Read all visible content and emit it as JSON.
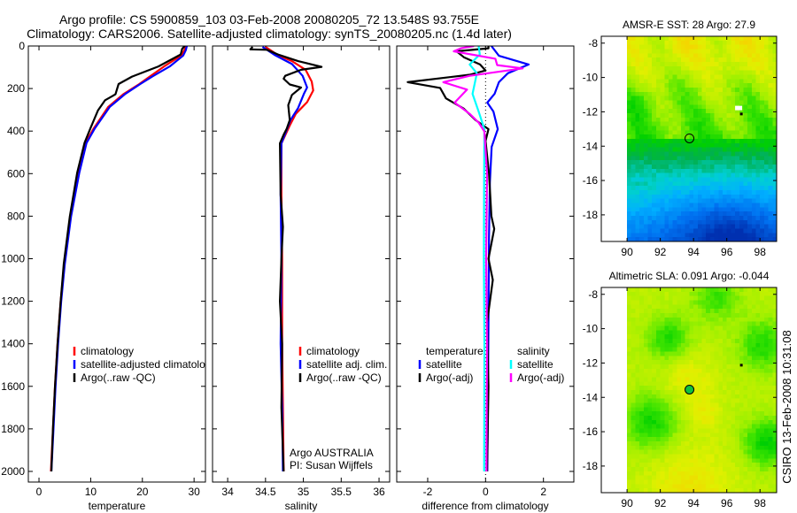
{
  "title": {
    "line1": "Argo profile: CS 5900859_103 03-Feb-2008 20080205_72 13.548S 93.755E",
    "line2": "Climatology: CARS2006. Satellite-adjusted climatology: synTS_20080205.nc (1.4d later)"
  },
  "side_label": "CSIRO 13-Feb-2008 10:31:08",
  "chart_data": [
    {
      "type": "line",
      "id": "temperature",
      "xlabel": "temperature",
      "ylabel": "",
      "xlim": [
        -2.06,
        32.2
      ],
      "ylim": [
        0,
        2050
      ],
      "y_reversed": true,
      "xticks": [
        0,
        10,
        20,
        30
      ],
      "yticks": [
        0,
        200,
        400,
        600,
        800,
        1000,
        1200,
        1400,
        1600,
        1800,
        2000
      ],
      "show_ytick_labels": true,
      "legend": [
        {
          "label": "climatology",
          "color": "#ff0000"
        },
        {
          "label": "satellite-adjusted climatology",
          "color": "#0000ff"
        },
        {
          "label": "Argo(..raw -QC)",
          "color": "#000000"
        }
      ],
      "series": [
        {
          "name": "climatology",
          "color": "#ff0000",
          "points": [
            [
              28.4,
              0
            ],
            [
              28.1,
              20
            ],
            [
              27.5,
              45
            ],
            [
              24.2,
              96
            ],
            [
              21.4,
              144
            ],
            [
              19.4,
              179
            ],
            [
              16.3,
              227
            ],
            [
              13.4,
              286
            ],
            [
              10.6,
              387
            ],
            [
              9.0,
              456
            ],
            [
              7.6,
              595
            ],
            [
              6.1,
              803
            ],
            [
              4.9,
              1024
            ],
            [
              4.2,
              1200
            ],
            [
              3.6,
              1400
            ],
            [
              3.1,
              1600
            ],
            [
              2.7,
              1800
            ],
            [
              2.3,
              2000
            ]
          ]
        },
        {
          "name": "satellite-adjusted climatology",
          "color": "#0000ff",
          "points": [
            [
              28.6,
              0
            ],
            [
              28.4,
              20
            ],
            [
              27.9,
              45
            ],
            [
              25.3,
              96
            ],
            [
              21.9,
              144
            ],
            [
              19.6,
              179
            ],
            [
              16.6,
              227
            ],
            [
              13.7,
              286
            ],
            [
              10.8,
              387
            ],
            [
              9.2,
              456
            ],
            [
              7.8,
              595
            ],
            [
              6.2,
              803
            ],
            [
              5.0,
              1024
            ],
            [
              4.3,
              1200
            ],
            [
              3.7,
              1400
            ],
            [
              3.2,
              1600
            ],
            [
              2.8,
              1800
            ],
            [
              2.4,
              2000
            ]
          ]
        },
        {
          "name": "Argo(..raw -QC)",
          "color": "#000000",
          "points": [
            [
              28.2,
              0
            ],
            [
              27.7,
              13
            ],
            [
              27.4,
              40
            ],
            [
              23.1,
              96
            ],
            [
              18.0,
              144
            ],
            [
              15.4,
              179
            ],
            [
              14.8,
              227
            ],
            [
              12.8,
              255
            ],
            [
              11.4,
              303
            ],
            [
              9.95,
              387
            ],
            [
              8.8,
              456
            ],
            [
              7.4,
              595
            ],
            [
              5.95,
              803
            ],
            [
              4.8,
              1024
            ],
            [
              4.2,
              1200
            ],
            [
              3.6,
              1400
            ],
            [
              3.1,
              1600
            ],
            [
              2.7,
              1800
            ],
            [
              2.4,
              2000
            ]
          ]
        }
      ]
    },
    {
      "type": "line",
      "id": "salinity",
      "xlabel": "salinity",
      "ylabel": "",
      "xlim": [
        33.8,
        36.14
      ],
      "ylim": [
        0,
        2050
      ],
      "y_reversed": true,
      "xticks": [
        34,
        34.5,
        35,
        35.5,
        36
      ],
      "yticks": [
        0,
        200,
        400,
        600,
        800,
        1000,
        1200,
        1400,
        1600,
        1800,
        2000
      ],
      "show_ytick_labels": false,
      "legend": [
        {
          "label": "climatology",
          "color": "#ff0000"
        },
        {
          "label": "satellite adj. clim.",
          "color": "#0000ff"
        },
        {
          "label": "Argo(..raw -QC)",
          "color": "#000000"
        }
      ],
      "annotation": [
        "Argo AUSTRALIA",
        "PI: Susan Wijffels"
      ],
      "series": [
        {
          "name": "climatology",
          "color": "#ff0000",
          "points": [
            [
              34.5,
              4
            ],
            [
              34.66,
              42
            ],
            [
              34.85,
              71
            ],
            [
              35.03,
              112
            ],
            [
              35.11,
              167
            ],
            [
              35.13,
              209
            ],
            [
              35.05,
              264
            ],
            [
              34.9,
              319
            ],
            [
              34.82,
              374
            ],
            [
              34.71,
              458
            ],
            [
              34.71,
              700
            ],
            [
              34.72,
              1000
            ],
            [
              34.72,
              1400
            ],
            [
              34.73,
              1700
            ],
            [
              34.74,
              2000
            ]
          ]
        },
        {
          "name": "satellite adj. clim.",
          "color": "#0000ff",
          "points": [
            [
              34.46,
              4
            ],
            [
              34.62,
              42
            ],
            [
              34.85,
              85
            ],
            [
              34.99,
              140
            ],
            [
              35.05,
              195
            ],
            [
              35.01,
              223
            ],
            [
              34.93,
              292
            ],
            [
              34.83,
              348
            ],
            [
              34.71,
              458
            ],
            [
              34.7,
              700
            ],
            [
              34.71,
              1000
            ],
            [
              34.7,
              1400
            ],
            [
              34.72,
              1700
            ],
            [
              34.73,
              2000
            ]
          ]
        },
        {
          "name": "Argo(..raw -QC)",
          "color": "#000000",
          "points": [
            [
              34.33,
              4
            ],
            [
              34.3,
              16
            ],
            [
              34.52,
              18
            ],
            [
              34.68,
              42
            ],
            [
              34.93,
              71
            ],
            [
              35.24,
              98
            ],
            [
              34.97,
              112
            ],
            [
              34.76,
              140
            ],
            [
              34.74,
              154
            ],
            [
              34.82,
              181
            ],
            [
              34.97,
              195
            ],
            [
              34.85,
              230
            ],
            [
              34.8,
              278
            ],
            [
              34.82,
              348
            ],
            [
              34.78,
              389
            ],
            [
              34.74,
              417
            ],
            [
              34.69,
              458
            ],
            [
              34.7,
              700
            ],
            [
              34.73,
              850
            ],
            [
              34.71,
              1000
            ],
            [
              34.69,
              1200
            ],
            [
              34.72,
              1400
            ],
            [
              34.71,
              1700
            ],
            [
              34.74,
              2000
            ]
          ]
        }
      ]
    },
    {
      "type": "line",
      "id": "difference",
      "xlabel": "difference from climatology",
      "ylabel": "",
      "xlim": [
        -3.07,
        3.05
      ],
      "ylim": [
        0,
        2050
      ],
      "y_reversed": true,
      "xticks": [
        -2,
        0,
        2
      ],
      "yticks": [
        0,
        200,
        400,
        600,
        800,
        1000,
        1200,
        1400,
        1600,
        1800,
        2000
      ],
      "show_ytick_labels": false,
      "zero_line": true,
      "legend_groups": [
        {
          "header": "temperature",
          "items": [
            {
              "label": "satellite",
              "color": "#0000ff"
            },
            {
              "label": "Argo(-adj)",
              "color": "#000000"
            }
          ]
        },
        {
          "header": "salinity",
          "items": [
            {
              "label": "satellite",
              "color": "#00ffff"
            },
            {
              "label": "Argo(-adj)",
              "color": "#ff00ff"
            }
          ]
        }
      ],
      "series": [
        {
          "name": "temperature satellite",
          "color": "#0000ff",
          "points": [
            [
              0.2,
              0
            ],
            [
              0.46,
              46
            ],
            [
              1.49,
              87
            ],
            [
              0.77,
              128
            ],
            [
              0.46,
              170
            ],
            [
              0.31,
              225
            ],
            [
              0.06,
              266
            ],
            [
              0.27,
              308
            ],
            [
              0.42,
              391
            ],
            [
              0.21,
              474
            ],
            [
              0.15,
              640
            ],
            [
              0.12,
              900
            ],
            [
              0.1,
              1300
            ],
            [
              0.08,
              1700
            ],
            [
              0.06,
              2000
            ]
          ]
        },
        {
          "name": "temperature Argo(-adj)",
          "color": "#000000",
          "points": [
            [
              0.1,
              0
            ],
            [
              0.1,
              11
            ],
            [
              -1.0,
              25
            ],
            [
              -0.75,
              53
            ],
            [
              -0.19,
              87
            ],
            [
              0.0,
              115
            ],
            [
              -0.55,
              135
            ],
            [
              -2.69,
              170
            ],
            [
              -1.57,
              197
            ],
            [
              -1.37,
              246
            ],
            [
              -0.76,
              294
            ],
            [
              -0.34,
              349
            ],
            [
              0.1,
              391
            ],
            [
              0.0,
              446
            ],
            [
              0.12,
              600
            ],
            [
              0.2,
              800
            ],
            [
              0.3,
              860
            ],
            [
              0.1,
              1000
            ],
            [
              0.25,
              1100
            ],
            [
              0.05,
              1300
            ],
            [
              0.1,
              1600
            ],
            [
              0.05,
              2000
            ]
          ]
        },
        {
          "name": "salinity satellite",
          "color": "#00ffff",
          "points": [
            [
              -0.24,
              0
            ],
            [
              -0.2,
              40
            ],
            [
              -0.55,
              87
            ],
            [
              -0.3,
              128
            ],
            [
              -0.45,
              225
            ],
            [
              -0.24,
              308
            ],
            [
              -0.04,
              391
            ],
            [
              -0.05,
              600
            ],
            [
              -0.06,
              1000
            ],
            [
              -0.04,
              1400
            ],
            [
              -0.05,
              2000
            ]
          ]
        },
        {
          "name": "salinity Argo(-adj)",
          "color": "#ff00ff",
          "points": [
            [
              -0.4,
              0
            ],
            [
              -0.85,
              11
            ],
            [
              -1.1,
              25
            ],
            [
              0.34,
              60
            ],
            [
              0.4,
              90
            ],
            [
              1.28,
              105
            ],
            [
              -0.55,
              140
            ],
            [
              -1.46,
              170
            ],
            [
              -0.64,
              205
            ],
            [
              -1.07,
              266
            ],
            [
              -0.55,
              319
            ],
            [
              -0.24,
              360
            ],
            [
              -0.04,
              402
            ],
            [
              0.05,
              600
            ],
            [
              0.02,
              1000
            ],
            [
              0.05,
              1400
            ],
            [
              0.03,
              2000
            ]
          ]
        }
      ]
    },
    {
      "type": "heatmap",
      "id": "sst-map",
      "title": "AMSR-E SST: 28 Argo: 27.9",
      "xlim": [
        88.45,
        99.0
      ],
      "ylim": [
        -19.55,
        -7.6
      ],
      "xticks": [
        90,
        92,
        94,
        96,
        98
      ],
      "yticks": [
        -8,
        -10,
        -12,
        -14,
        -16,
        -18
      ],
      "marker": {
        "lon": 93.755,
        "lat": -13.548,
        "filled": false
      }
    },
    {
      "type": "heatmap",
      "id": "sla-map",
      "title": "Altimetric SLA: 0.091 Argo: -0.044",
      "xlim": [
        88.45,
        99.0
      ],
      "ylim": [
        -19.55,
        -7.6
      ],
      "xticks": [
        90,
        92,
        94,
        96,
        98
      ],
      "yticks": [
        -8,
        -10,
        -12,
        -14,
        -16,
        -18
      ],
      "marker": {
        "lon": 93.755,
        "lat": -13.548,
        "filled": true,
        "fill": "#10c040"
      }
    }
  ]
}
